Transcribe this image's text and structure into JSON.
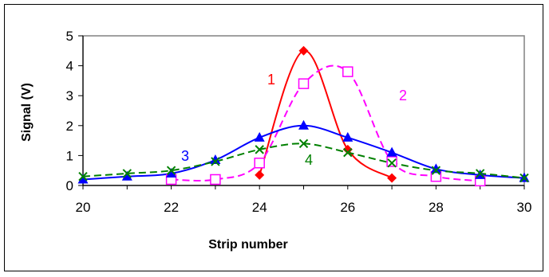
{
  "chart_data": {
    "type": "line",
    "xlabel": "Strip number",
    "ylabel": "Signal (V)",
    "xlim": [
      20,
      30
    ],
    "ylim": [
      0,
      5
    ],
    "x_ticks": [
      "20",
      "22",
      "24",
      "26",
      "28",
      "30"
    ],
    "y_ticks": [
      "0",
      "1",
      "2",
      "3",
      "4",
      "5"
    ],
    "grid": false,
    "legend": "none (series numbered on chart)",
    "series": [
      {
        "name": "1",
        "color": "#ff0000",
        "marker": "diamond",
        "dash": "solid",
        "points": [
          [
            24,
            0.35
          ],
          [
            25,
            4.5
          ],
          [
            26,
            1.2
          ],
          [
            27,
            0.25
          ]
        ]
      },
      {
        "name": "2",
        "color": "#ff00ff",
        "marker": "open-square",
        "dash": "dashed",
        "points": [
          [
            22,
            0.2
          ],
          [
            23,
            0.2
          ],
          [
            24,
            0.75
          ],
          [
            25,
            3.4
          ],
          [
            26,
            3.8
          ],
          [
            27,
            0.8
          ],
          [
            28,
            0.3
          ],
          [
            29,
            0.15
          ]
        ]
      },
      {
        "name": "3",
        "color": "#0000ff",
        "marker": "triangle",
        "dash": "solid",
        "points": [
          [
            20,
            0.2
          ],
          [
            21,
            0.3
          ],
          [
            22,
            0.4
          ],
          [
            23,
            0.85
          ],
          [
            24,
            1.6
          ],
          [
            25,
            2.0
          ],
          [
            26,
            1.6
          ],
          [
            27,
            1.1
          ],
          [
            28,
            0.55
          ],
          [
            29,
            0.35
          ],
          [
            30,
            0.25
          ]
        ]
      },
      {
        "name": "4",
        "color": "#008000",
        "marker": "x",
        "dash": "dashed",
        "points": [
          [
            20,
            0.3
          ],
          [
            21,
            0.4
          ],
          [
            22,
            0.5
          ],
          [
            23,
            0.8
          ],
          [
            24,
            1.2
          ],
          [
            25,
            1.4
          ],
          [
            26,
            1.1
          ],
          [
            27,
            0.75
          ],
          [
            28,
            0.5
          ],
          [
            29,
            0.4
          ],
          [
            30,
            0.25
          ]
        ]
      }
    ]
  }
}
